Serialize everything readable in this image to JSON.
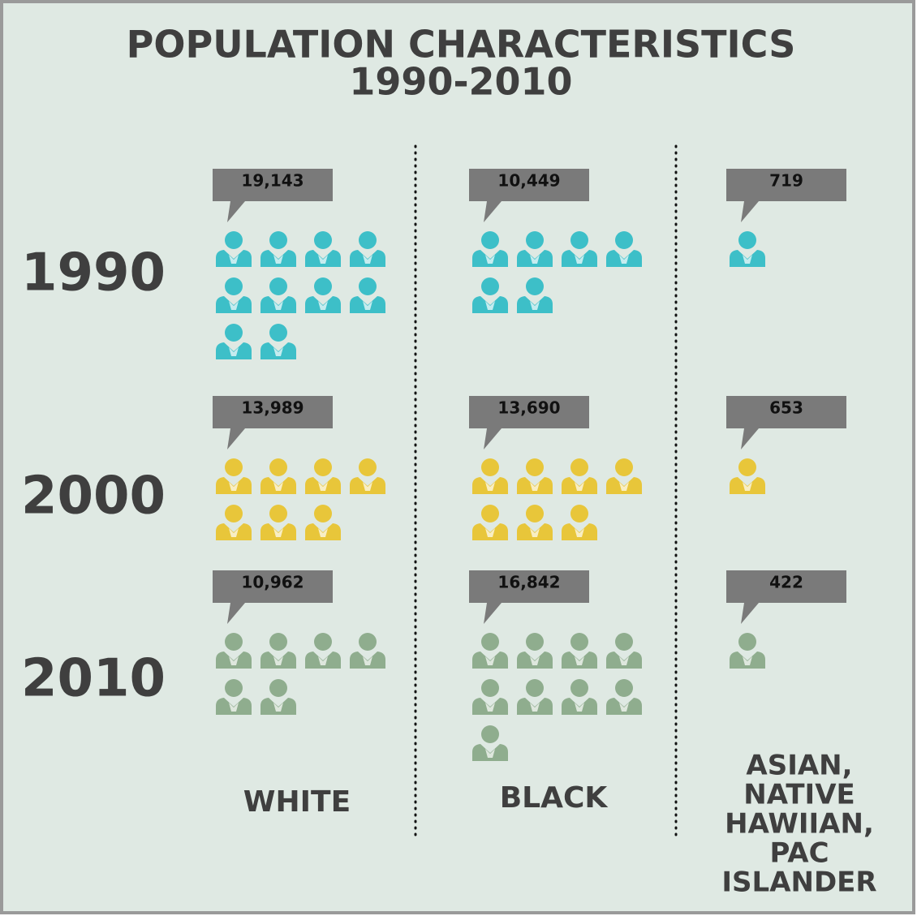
{
  "chart_data": {
    "type": "pictogram",
    "title": [
      "POPULATION CHARACTERISTICS",
      "1990-2010"
    ],
    "categories": [
      "1990",
      "2000",
      "2010"
    ],
    "colors": [
      "#3dbfc8",
      "#e8c63a",
      "#8fad8e"
    ],
    "series": [
      {
        "name": "WHITE",
        "values": [
          19143,
          13989,
          10962
        ],
        "value_labels": [
          "19,143",
          "13,989",
          "10,962"
        ]
      },
      {
        "name": "BLACK",
        "values": [
          10449,
          13690,
          16842
        ],
        "value_labels": [
          "10,449",
          "13,690",
          "16,842"
        ]
      },
      {
        "name": [
          "ASIAN,",
          "NATIVE",
          "HAWIIAN,",
          "PAC",
          "ISLANDER"
        ],
        "values": [
          719,
          653,
          422
        ]
      }
    ]
  }
}
